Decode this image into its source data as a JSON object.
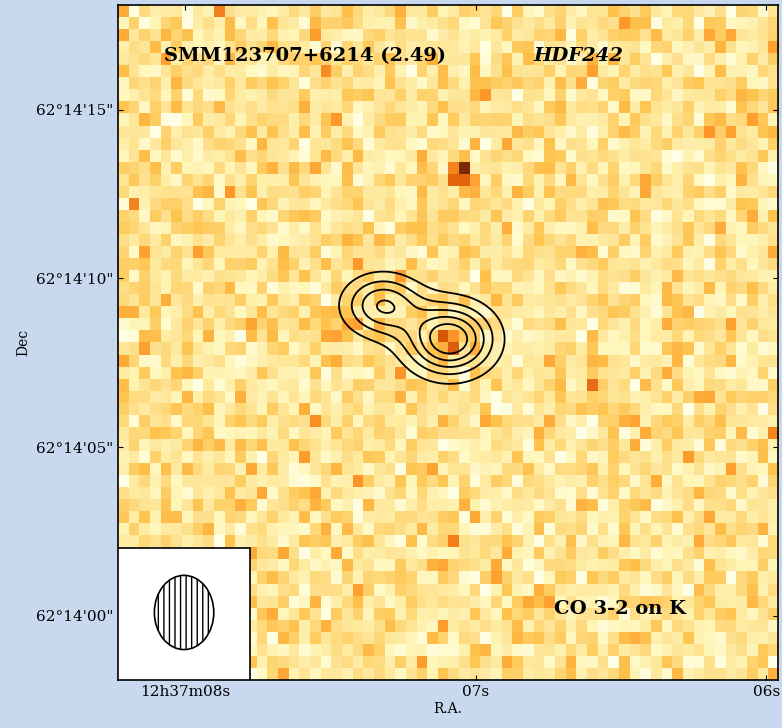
{
  "chart_data": {
    "type": "contour",
    "title": "SMM123707+6214 (2.49)",
    "subtitle": "HDF242",
    "annotation": "CO 3-2 on K",
    "x_label": "R.A.",
    "y_label": "Dec",
    "xlim": [
      8.23,
      5.96
    ],
    "ylim": [
      -1.9,
      18.1
    ],
    "xticks": [
      {
        "value": 8,
        "label": "12h37m08s"
      },
      {
        "value": 7,
        "label": "07s"
      },
      {
        "value": 6,
        "label": "06s"
      }
    ],
    "yticks": [
      {
        "value": 0,
        "label": "62°14'00\""
      },
      {
        "value": 5,
        "label": "62°14'05\""
      },
      {
        "value": 10,
        "label": "62°14'10\""
      },
      {
        "value": 15,
        "label": "62°14'15\""
      }
    ],
    "k_sources": [
      {
        "ra": 7.05,
        "dec": 13.3,
        "amplitude": 3.0,
        "width_ra": 0.025,
        "width_dec": 0.25
      },
      {
        "ra": 7.09,
        "dec": 8.15,
        "amplitude": 1.6,
        "width_ra": 0.03,
        "width_dec": 0.3
      }
    ],
    "co_components": [
      {
        "ra": 7.09,
        "dec": 8.2,
        "amplitude": 6.0,
        "width_ra": 0.1,
        "width_dec": 0.7
      },
      {
        "ra": 7.32,
        "dec": 9.2,
        "amplitude": 4.0,
        "width_ra": 0.09,
        "width_dec": 0.6
      }
    ],
    "contour_levels": [
      1,
      2,
      3,
      4,
      5
    ],
    "color": "#000000"
  }
}
